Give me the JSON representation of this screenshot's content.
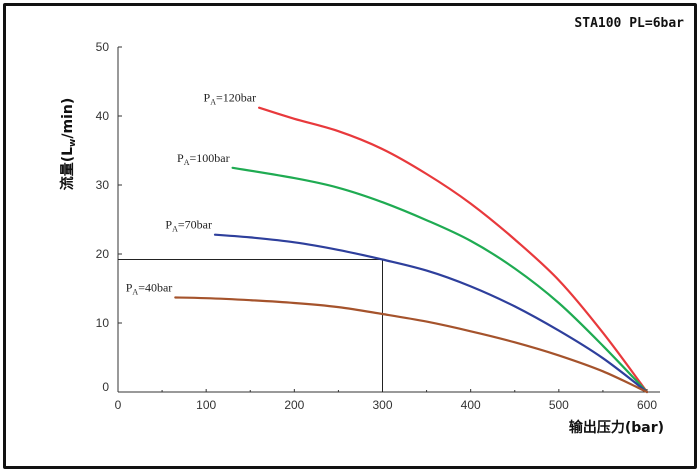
{
  "header": "STA100 PL=6bar",
  "chart_data": {
    "type": "line",
    "title": "STA100 PL=6bar",
    "xlabel": "输出压力(bar)",
    "ylabel": "流量(L",
    "ylabel_sub": "w",
    "ylabel_suffix": "/min)",
    "xlim": [
      0,
      600
    ],
    "ylim": [
      0,
      50
    ],
    "x_ticks": [
      0,
      100,
      200,
      300,
      400,
      500,
      600
    ],
    "y_ticks": [
      0,
      10,
      20,
      30,
      40,
      50
    ],
    "grid": false,
    "series": [
      {
        "name": "PA=120bar",
        "label_main": "P",
        "label_sub": "A",
        "label_rest": "=120bar",
        "color": "#e8393c",
        "x": [
          160,
          200,
          250,
          300,
          350,
          400,
          450,
          500,
          550,
          600
        ],
        "y": [
          41.2,
          39.6,
          37.8,
          35.2,
          31.6,
          27.3,
          22.1,
          16.2,
          8.6,
          0
        ]
      },
      {
        "name": "PA=100bar",
        "label_main": "P",
        "label_sub": "A",
        "label_rest": "=100bar",
        "color": "#1fab52",
        "x": [
          130,
          200,
          250,
          300,
          350,
          400,
          450,
          500,
          550,
          600
        ],
        "y": [
          32.5,
          31.0,
          29.6,
          27.5,
          24.9,
          21.9,
          17.9,
          12.9,
          6.7,
          0
        ]
      },
      {
        "name": "PA=70bar",
        "label_main": "P",
        "label_sub": "A",
        "label_rest": "=70bar",
        "color": "#2e3f9c",
        "x": [
          110,
          150,
          200,
          250,
          300,
          350,
          400,
          450,
          500,
          550,
          600
        ],
        "y": [
          22.8,
          22.4,
          21.7,
          20.6,
          19.2,
          17.6,
          15.3,
          12.4,
          8.9,
          4.9,
          0
        ]
      },
      {
        "name": "PA=40bar",
        "label_main": "P",
        "label_sub": "A",
        "label_rest": "=40bar",
        "color": "#a5532c",
        "x": [
          65,
          100,
          150,
          200,
          250,
          300,
          350,
          400,
          450,
          500,
          550,
          600
        ],
        "y": [
          13.7,
          13.6,
          13.3,
          12.9,
          12.3,
          11.3,
          10.2,
          8.8,
          7.2,
          5.3,
          3.0,
          0
        ]
      }
    ],
    "annotations": [
      {
        "type": "reference_lines",
        "x": 300,
        "y": 19.2,
        "series": "PA=70bar"
      }
    ]
  }
}
